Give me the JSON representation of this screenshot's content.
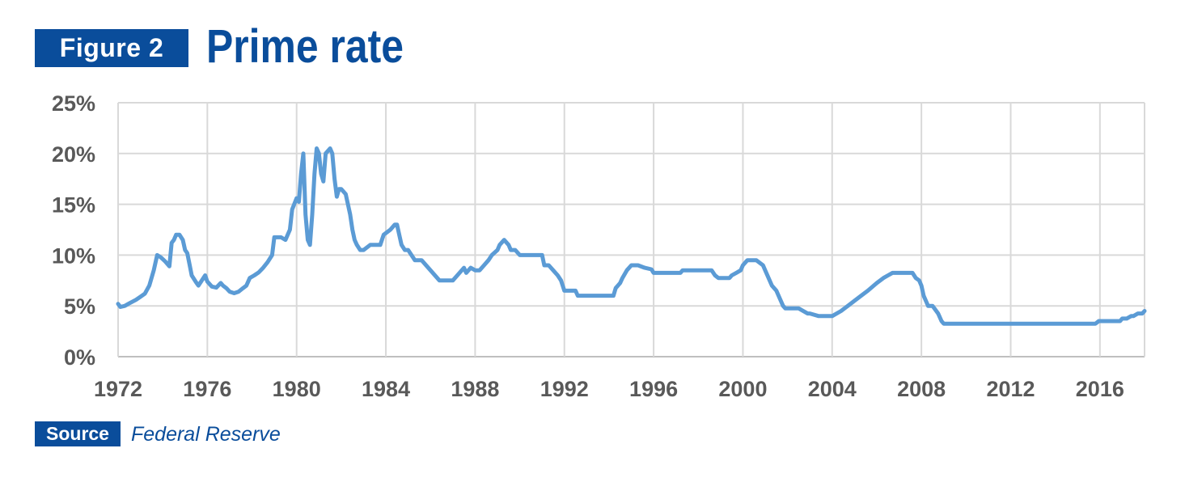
{
  "header": {
    "figure_label": "Figure 2",
    "title": "Prime rate"
  },
  "source": {
    "label": "Source",
    "text": "Federal Reserve"
  },
  "colors": {
    "brand": "#0a4d9b",
    "line": "#5b9bd5",
    "grid": "#d9d9d9",
    "axis_text": "#595959"
  },
  "chart_data": {
    "type": "line",
    "title": "Prime rate",
    "xlabel": "",
    "ylabel": "",
    "xlim": [
      1972,
      2018
    ],
    "ylim": [
      0,
      25
    ],
    "grid": true,
    "legend": "none",
    "x_ticks": [
      1972,
      1976,
      1980,
      1984,
      1988,
      1992,
      1996,
      2000,
      2004,
      2008,
      2012,
      2016
    ],
    "x_tick_labels": [
      "1972",
      "1976",
      "1980",
      "1984",
      "1988",
      "1992",
      "1996",
      "2000",
      "2004",
      "2008",
      "2012",
      "2016"
    ],
    "y_ticks": [
      0,
      5,
      10,
      15,
      20,
      25
    ],
    "y_tick_labels": [
      "0%",
      "5%",
      "10%",
      "15%",
      "20%",
      "25%"
    ],
    "series": [
      {
        "x": [
          1972.0,
          1972.1,
          1972.3,
          1972.5,
          1972.8,
          1973.0,
          1973.2,
          1973.4,
          1973.6,
          1973.75,
          1973.9,
          1974.0,
          1974.1,
          1974.3,
          1974.4,
          1974.5,
          1974.6,
          1974.75,
          1974.9,
          1975.0,
          1975.1,
          1975.2,
          1975.3,
          1975.5,
          1975.6,
          1975.75,
          1975.9,
          1976.0,
          1976.2,
          1976.4,
          1976.6,
          1976.7,
          1976.85,
          1977.0,
          1977.2,
          1977.4,
          1977.6,
          1977.75,
          1977.9,
          1978.1,
          1978.3,
          1978.5,
          1978.7,
          1978.9,
          1979.0,
          1979.3,
          1979.5,
          1979.7,
          1979.8,
          1980.0,
          1980.1,
          1980.2,
          1980.3,
          1980.4,
          1980.5,
          1980.6,
          1980.7,
          1980.8,
          1980.9,
          1981.0,
          1981.1,
          1981.2,
          1981.3,
          1981.5,
          1981.6,
          1981.7,
          1981.8,
          1981.9,
          1982.0,
          1982.2,
          1982.4,
          1982.5,
          1982.6,
          1982.7,
          1982.85,
          1983.0,
          1983.3,
          1983.6,
          1983.75,
          1983.9,
          1984.2,
          1984.4,
          1984.5,
          1984.6,
          1984.7,
          1984.85,
          1985.0,
          1985.3,
          1985.6,
          1986.0,
          1986.4,
          1986.6,
          1986.75,
          1987.0,
          1987.3,
          1987.5,
          1987.6,
          1987.8,
          1988.0,
          1988.2,
          1988.4,
          1988.6,
          1988.75,
          1989.0,
          1989.1,
          1989.3,
          1989.5,
          1989.6,
          1989.8,
          1990.0,
          1990.5,
          1991.0,
          1991.1,
          1991.3,
          1991.5,
          1991.7,
          1991.85,
          1992.0,
          1992.2,
          1992.5,
          1992.6,
          1993.0,
          1993.5,
          1994.0,
          1994.2,
          1994.3,
          1994.5,
          1994.6,
          1994.8,
          1995.0,
          1995.3,
          1995.6,
          1995.9,
          1996.0,
          1996.4,
          1996.8,
          1997.2,
          1997.3,
          1997.7,
          1998.2,
          1998.6,
          1998.75,
          1998.9,
          1999.0,
          1999.4,
          1999.5,
          1999.7,
          1999.9,
          2000.0,
          2000.2,
          2000.4,
          2000.6,
          2000.9,
          2001.0,
          2001.2,
          2001.3,
          2001.5,
          2001.7,
          2001.8,
          2001.9,
          2002.0,
          2002.5,
          2002.9,
          2003.0,
          2003.4,
          2003.5,
          2004.0,
          2004.4,
          2004.7,
          2005.0,
          2005.3,
          2005.6,
          2006.0,
          2006.3,
          2006.5,
          2006.7,
          2007.0,
          2007.3,
          2007.6,
          2007.75,
          2007.9,
          2008.0,
          2008.1,
          2008.3,
          2008.5,
          2008.75,
          2008.9,
          2009.0,
          2010.0,
          2012.0,
          2014.0,
          2015.8,
          2015.95,
          2016.5,
          2016.9,
          2017.0,
          2017.2,
          2017.4,
          2017.5,
          2017.7,
          2017.9,
          2018.0
        ],
        "values": [
          5.2,
          4.9,
          5.0,
          5.25,
          5.6,
          5.9,
          6.2,
          7.0,
          8.5,
          10.0,
          9.8,
          9.6,
          9.4,
          8.9,
          11.2,
          11.5,
          12.0,
          12.0,
          11.5,
          10.5,
          10.2,
          9.1,
          8.0,
          7.3,
          7.0,
          7.5,
          8.0,
          7.4,
          6.9,
          6.8,
          7.25,
          7.0,
          6.75,
          6.4,
          6.25,
          6.4,
          6.75,
          7.0,
          7.75,
          8.0,
          8.3,
          8.75,
          9.3,
          10.0,
          11.75,
          11.75,
          11.5,
          12.5,
          14.5,
          15.6,
          15.25,
          18.0,
          20.0,
          14.0,
          11.5,
          11.0,
          14.0,
          18.0,
          20.5,
          20.0,
          18.0,
          17.25,
          20.0,
          20.5,
          20.0,
          17.5,
          15.75,
          16.5,
          16.5,
          16.0,
          14.0,
          12.5,
          11.5,
          11.0,
          10.5,
          10.5,
          11.0,
          11.0,
          11.0,
          12.0,
          12.5,
          13.0,
          13.0,
          12.0,
          11.0,
          10.5,
          10.5,
          9.5,
          9.5,
          8.5,
          7.5,
          7.5,
          7.5,
          7.5,
          8.25,
          8.75,
          8.25,
          8.75,
          8.5,
          8.5,
          9.0,
          9.5,
          10.0,
          10.5,
          11.0,
          11.5,
          11.0,
          10.5,
          10.5,
          10.0,
          10.0,
          10.0,
          9.0,
          9.0,
          8.5,
          8.0,
          7.5,
          6.5,
          6.5,
          6.5,
          6.0,
          6.0,
          6.0,
          6.0,
          6.0,
          6.75,
          7.25,
          7.75,
          8.5,
          9.0,
          9.0,
          8.75,
          8.6,
          8.25,
          8.25,
          8.25,
          8.25,
          8.5,
          8.5,
          8.5,
          8.5,
          8.0,
          7.75,
          7.75,
          7.75,
          8.0,
          8.25,
          8.5,
          9.0,
          9.5,
          9.5,
          9.5,
          9.0,
          8.5,
          7.5,
          7.0,
          6.5,
          5.5,
          5.0,
          4.75,
          4.75,
          4.75,
          4.25,
          4.25,
          4.0,
          4.0,
          4.0,
          4.5,
          5.0,
          5.5,
          6.0,
          6.5,
          7.25,
          7.75,
          8.0,
          8.25,
          8.25,
          8.25,
          8.25,
          7.75,
          7.5,
          7.0,
          6.0,
          5.0,
          5.0,
          4.25,
          3.5,
          3.25,
          3.25,
          3.25,
          3.25,
          3.25,
          3.5,
          3.5,
          3.5,
          3.75,
          3.75,
          4.0,
          4.0,
          4.25,
          4.25,
          4.5
        ]
      }
    ]
  }
}
